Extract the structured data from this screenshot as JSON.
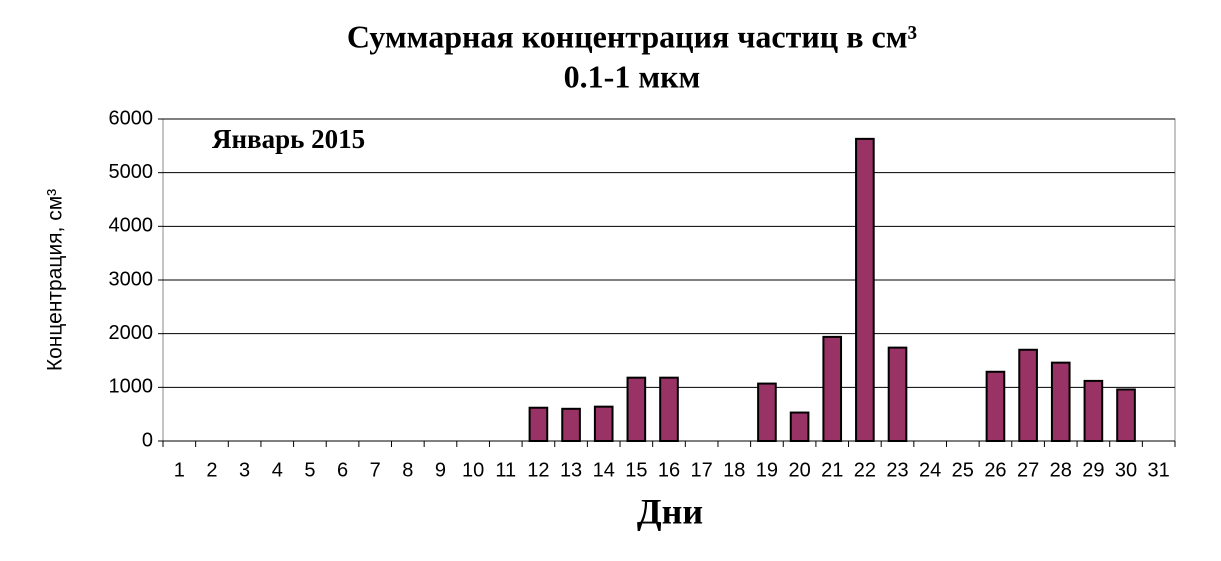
{
  "chart_data": {
    "type": "bar",
    "title": "Суммарная концентрация частиц  в см³",
    "subtitle": "0.1-1 мкм",
    "annotation": "Январь 2015",
    "x_label": "Дни",
    "y_label": "Концентрация, см³",
    "categories": [
      "1",
      "2",
      "3",
      "4",
      "5",
      "6",
      "7",
      "8",
      "9",
      "10",
      "11",
      "12",
      "13",
      "14",
      "15",
      "16",
      "17",
      "18",
      "19",
      "20",
      "21",
      "22",
      "23",
      "24",
      "25",
      "26",
      "27",
      "28",
      "29",
      "30",
      "31"
    ],
    "values": [
      null,
      null,
      null,
      null,
      null,
      null,
      null,
      null,
      null,
      null,
      null,
      620,
      600,
      640,
      1180,
      1180,
      null,
      null,
      1070,
      530,
      1940,
      5630,
      1740,
      null,
      null,
      1290,
      1700,
      1460,
      1120,
      960,
      null
    ],
    "color": "#993366",
    "ylim": [
      0,
      6000
    ],
    "yticks": [
      0,
      1000,
      2000,
      3000,
      4000,
      5000,
      6000
    ],
    "grid": true
  }
}
